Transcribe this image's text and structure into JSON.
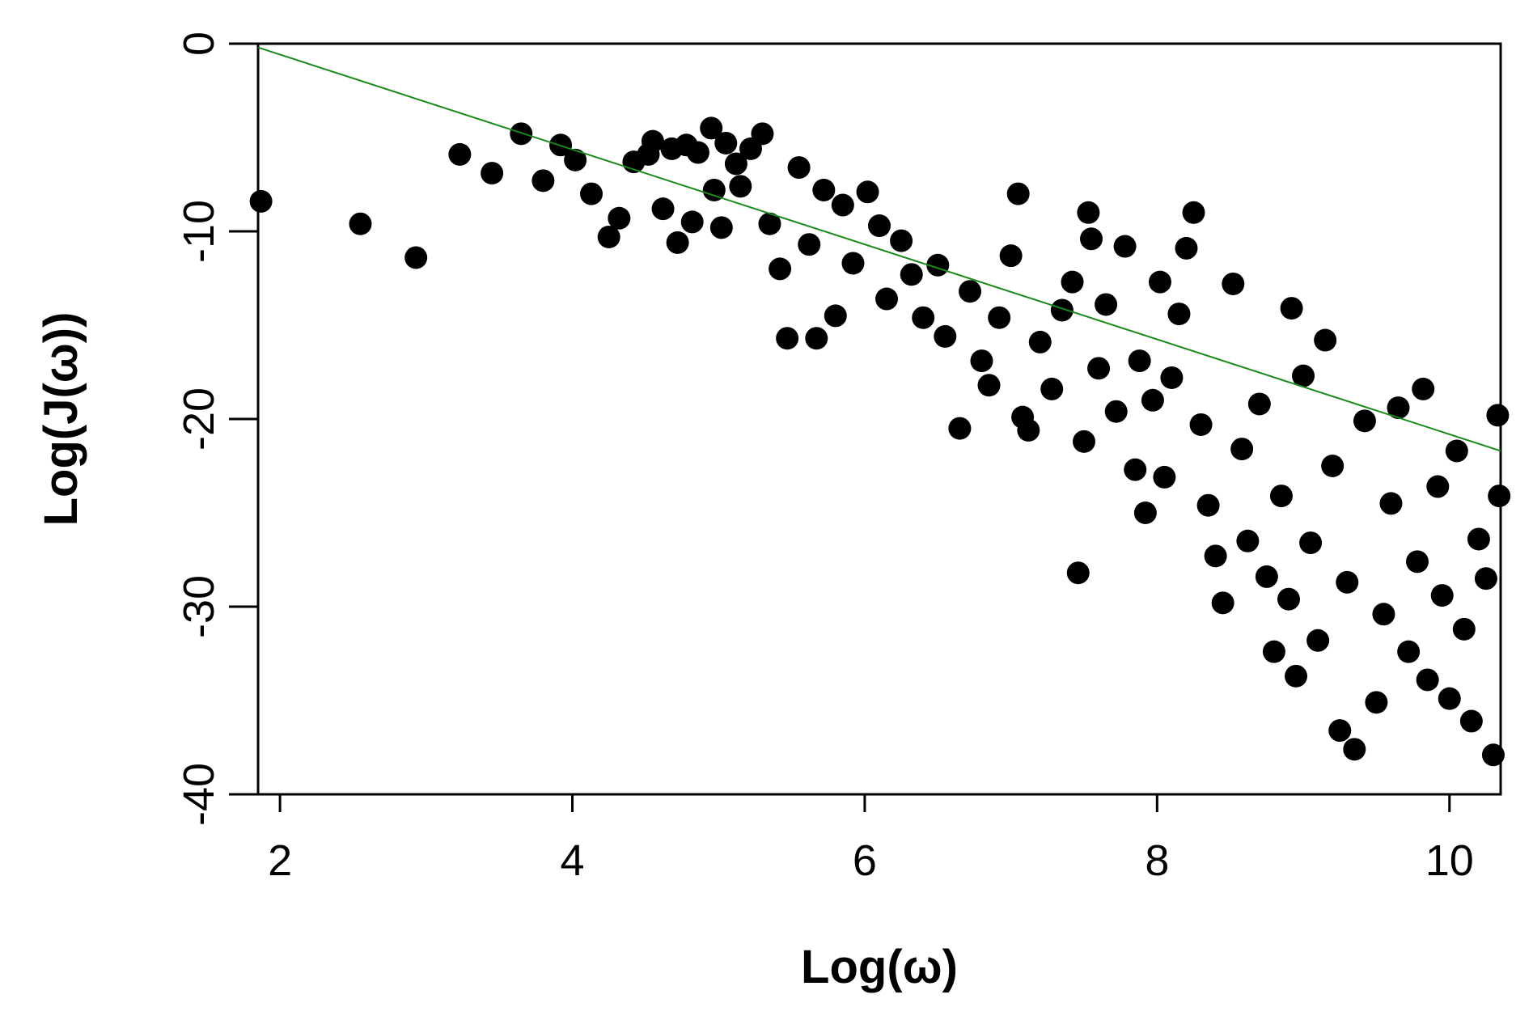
{
  "chart_data": {
    "type": "scatter",
    "title": "",
    "xlabel": "Log(ω)",
    "ylabel": "Log(J(ω))",
    "xlim": [
      1.85,
      10.35
    ],
    "ylim": [
      -40,
      0
    ],
    "x_ticks": [
      2,
      4,
      6,
      8,
      10
    ],
    "x_tick_labels": [
      "2",
      "4",
      "6",
      "8",
      "10"
    ],
    "y_ticks": [
      0,
      -10,
      -20,
      -30,
      -40
    ],
    "y_tick_labels": [
      "0",
      "-10",
      "-20",
      "-30",
      "-40"
    ],
    "grid": false,
    "legend": "none",
    "marker_color": "#000000",
    "fit_line_color": "#1a8a1a",
    "fit_line": {
      "x": [
        1.85,
        10.35
      ],
      "y": [
        -0.2,
        -21.7
      ]
    },
    "series": [
      {
        "points": [
          [
            1.87,
            -8.4
          ],
          [
            2.55,
            -9.6
          ],
          [
            2.93,
            -11.4
          ],
          [
            3.23,
            -5.9
          ],
          [
            3.45,
            -6.9
          ],
          [
            3.65,
            -4.8
          ],
          [
            3.8,
            -7.3
          ],
          [
            3.92,
            -5.4
          ],
          [
            4.02,
            -6.2
          ],
          [
            4.13,
            -8.0
          ],
          [
            4.25,
            -10.3
          ],
          [
            4.32,
            -9.3
          ],
          [
            4.42,
            -6.3
          ],
          [
            4.52,
            -5.9
          ],
          [
            4.55,
            -5.2
          ],
          [
            4.62,
            -8.8
          ],
          [
            4.68,
            -5.6
          ],
          [
            4.72,
            -10.6
          ],
          [
            4.78,
            -5.4
          ],
          [
            4.82,
            -9.5
          ],
          [
            4.86,
            -5.8
          ],
          [
            4.95,
            -4.5
          ],
          [
            4.97,
            -7.8
          ],
          [
            5.02,
            -9.8
          ],
          [
            5.05,
            -5.3
          ],
          [
            5.12,
            -6.4
          ],
          [
            5.15,
            -7.6
          ],
          [
            5.22,
            -5.6
          ],
          [
            5.3,
            -4.8
          ],
          [
            5.35,
            -9.6
          ],
          [
            5.42,
            -12.0
          ],
          [
            5.47,
            -15.7
          ],
          [
            5.55,
            -6.6
          ],
          [
            5.62,
            -10.7
          ],
          [
            5.67,
            -15.7
          ],
          [
            5.72,
            -7.8
          ],
          [
            5.8,
            -14.5
          ],
          [
            5.85,
            -8.6
          ],
          [
            5.92,
            -11.7
          ],
          [
            6.02,
            -7.9
          ],
          [
            6.1,
            -9.7
          ],
          [
            6.15,
            -13.6
          ],
          [
            6.25,
            -10.5
          ],
          [
            6.32,
            -12.3
          ],
          [
            6.4,
            -14.6
          ],
          [
            6.5,
            -11.8
          ],
          [
            6.55,
            -15.6
          ],
          [
            6.65,
            -20.5
          ],
          [
            6.72,
            -13.2
          ],
          [
            6.8,
            -16.9
          ],
          [
            6.85,
            -18.2
          ],
          [
            6.92,
            -14.6
          ],
          [
            7.0,
            -11.3
          ],
          [
            7.05,
            -8.0
          ],
          [
            7.08,
            -19.9
          ],
          [
            7.12,
            -20.6
          ],
          [
            7.2,
            -15.9
          ],
          [
            7.28,
            -18.4
          ],
          [
            7.35,
            -14.2
          ],
          [
            7.42,
            -12.7
          ],
          [
            7.46,
            -28.2
          ],
          [
            7.5,
            -21.2
          ],
          [
            7.53,
            -9.0
          ],
          [
            7.55,
            -10.4
          ],
          [
            7.6,
            -17.3
          ],
          [
            7.65,
            -13.9
          ],
          [
            7.72,
            -19.6
          ],
          [
            7.78,
            -10.8
          ],
          [
            7.85,
            -22.7
          ],
          [
            7.88,
            -16.9
          ],
          [
            7.92,
            -25.0
          ],
          [
            7.97,
            -19.0
          ],
          [
            8.02,
            -12.7
          ],
          [
            8.05,
            -23.1
          ],
          [
            8.1,
            -17.8
          ],
          [
            8.15,
            -14.4
          ],
          [
            8.2,
            -10.9
          ],
          [
            8.25,
            -9.0
          ],
          [
            8.3,
            -20.3
          ],
          [
            8.35,
            -24.6
          ],
          [
            8.4,
            -27.3
          ],
          [
            8.45,
            -29.8
          ],
          [
            8.52,
            -12.8
          ],
          [
            8.58,
            -21.6
          ],
          [
            8.62,
            -26.5
          ],
          [
            8.7,
            -19.2
          ],
          [
            8.75,
            -28.4
          ],
          [
            8.8,
            -32.4
          ],
          [
            8.85,
            -24.1
          ],
          [
            8.9,
            -29.6
          ],
          [
            8.92,
            -14.1
          ],
          [
            8.95,
            -33.7
          ],
          [
            9.0,
            -17.7
          ],
          [
            9.05,
            -26.6
          ],
          [
            9.1,
            -31.8
          ],
          [
            9.15,
            -15.8
          ],
          [
            9.2,
            -22.5
          ],
          [
            9.25,
            -36.6
          ],
          [
            9.3,
            -28.7
          ],
          [
            9.35,
            -37.6
          ],
          [
            9.42,
            -20.1
          ],
          [
            9.5,
            -35.1
          ],
          [
            9.55,
            -30.4
          ],
          [
            9.6,
            -24.5
          ],
          [
            9.65,
            -19.4
          ],
          [
            9.72,
            -32.4
          ],
          [
            9.78,
            -27.6
          ],
          [
            9.82,
            -18.4
          ],
          [
            9.85,
            -33.9
          ],
          [
            9.92,
            -23.6
          ],
          [
            9.95,
            -29.4
          ],
          [
            10.0,
            -34.9
          ],
          [
            10.05,
            -21.7
          ],
          [
            10.1,
            -31.2
          ],
          [
            10.15,
            -36.1
          ],
          [
            10.2,
            -26.4
          ],
          [
            10.25,
            -28.5
          ],
          [
            10.3,
            -37.9
          ],
          [
            10.33,
            -19.8
          ],
          [
            10.34,
            -24.1
          ]
        ]
      }
    ]
  }
}
